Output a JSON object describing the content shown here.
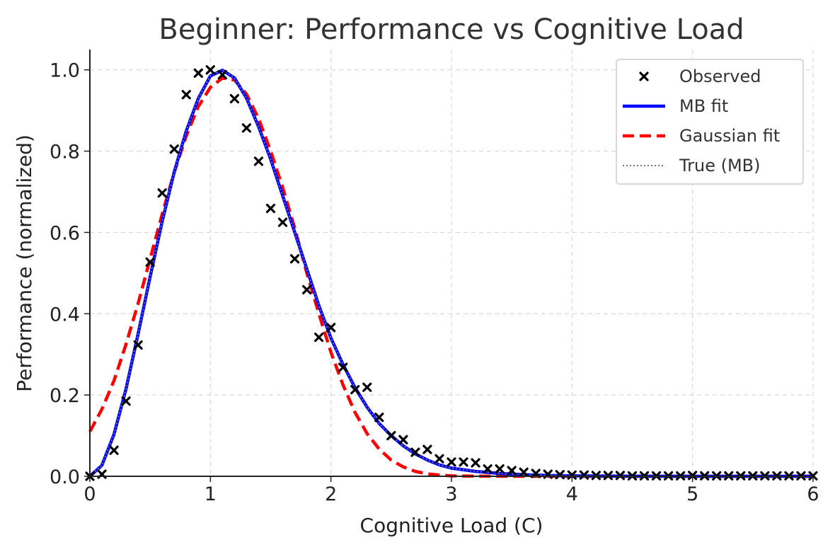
{
  "colors": {
    "observed": "#000000",
    "mb_fit": "#0000ff",
    "gaussian_fit": "#ff0000",
    "true_mb": "#777777",
    "grid": "#d8d8d8",
    "axis": "#222222",
    "title": "#333333"
  },
  "chart_data": {
    "type": "line",
    "title": "Beginner: Performance vs Cognitive Load",
    "xlabel": "Cognitive Load (C)",
    "ylabel": "Performance (normalized)",
    "xlim": [
      0,
      6
    ],
    "ylim": [
      0,
      1.05
    ],
    "xticks": [
      0,
      1,
      2,
      3,
      4,
      5,
      6
    ],
    "xtick_labels": [
      "0",
      "1",
      "2",
      "3",
      "4",
      "5",
      "6"
    ],
    "yticks": [
      0,
      0.2,
      0.4,
      0.6,
      0.8,
      1.0
    ],
    "ytick_labels": [
      "0.0",
      "0.2",
      "0.4",
      "0.6",
      "0.8",
      "1.0"
    ],
    "grid": true,
    "legend_position": "top-right",
    "legend": [
      "Observed",
      "MB fit",
      "Gaussian fit",
      "True (MB)"
    ],
    "series": [
      {
        "name": "Observed",
        "kind": "scatter",
        "marker": "x",
        "x": [
          0.0,
          0.1,
          0.2,
          0.3,
          0.4,
          0.5,
          0.6,
          0.7,
          0.8,
          0.9,
          1.0,
          1.1,
          1.2,
          1.3,
          1.4,
          1.5,
          1.6,
          1.7,
          1.8,
          1.9,
          2.0,
          2.1,
          2.2,
          2.3,
          2.4,
          2.5,
          2.6,
          2.7,
          2.8,
          2.9,
          3.0,
          3.1,
          3.2,
          3.3,
          3.4,
          3.5,
          3.6,
          3.7,
          3.8,
          3.9,
          4.0,
          4.1,
          4.2,
          4.3,
          4.4,
          4.5,
          4.6,
          4.7,
          4.8,
          4.9,
          5.0,
          5.1,
          5.2,
          5.3,
          5.4,
          5.5,
          5.6,
          5.7,
          5.8,
          5.9,
          6.0
        ],
        "y": [
          0.0,
          0.005,
          0.064,
          0.185,
          0.323,
          0.527,
          0.697,
          0.805,
          0.939,
          0.992,
          1.0,
          0.988,
          0.929,
          0.857,
          0.775,
          0.659,
          0.625,
          0.535,
          0.459,
          0.342,
          0.366,
          0.268,
          0.213,
          0.219,
          0.145,
          0.1,
          0.09,
          0.059,
          0.066,
          0.043,
          0.035,
          0.035,
          0.033,
          0.018,
          0.018,
          0.014,
          0.01,
          0.007,
          0.005,
          0.004,
          0.003,
          0.003,
          0.002,
          0.002,
          0.002,
          0.001,
          0.001,
          0.001,
          0.001,
          0.001,
          0.002,
          0.001,
          0.001,
          0.001,
          0.001,
          0.001,
          0.001,
          0.001,
          0.001,
          0.001,
          0.001
        ]
      },
      {
        "name": "MB fit",
        "kind": "line",
        "x": [
          0.0,
          0.1,
          0.2,
          0.3,
          0.4,
          0.5,
          0.6,
          0.7,
          0.8,
          0.9,
          1.0,
          1.1,
          1.2,
          1.3,
          1.4,
          1.5,
          1.6,
          1.7,
          1.8,
          1.9,
          2.0,
          2.1,
          2.2,
          2.3,
          2.4,
          2.5,
          2.6,
          2.7,
          2.8,
          2.9,
          3.0,
          3.2,
          3.4,
          3.6,
          3.8,
          4.0,
          4.5,
          5.0,
          5.5,
          6.0
        ],
        "y": [
          0.0,
          0.027,
          0.103,
          0.215,
          0.35,
          0.491,
          0.627,
          0.749,
          0.85,
          0.93,
          0.985,
          0.999,
          0.98,
          0.93,
          0.86,
          0.78,
          0.69,
          0.6,
          0.51,
          0.42,
          0.34,
          0.275,
          0.218,
          0.17,
          0.13,
          0.1,
          0.075,
          0.055,
          0.04,
          0.028,
          0.02,
          0.012,
          0.007,
          0.004,
          0.002,
          0.001,
          0.0003,
          0.0001,
          0.0,
          0.0
        ]
      },
      {
        "name": "Gaussian fit",
        "kind": "line",
        "x": [
          0.0,
          0.1,
          0.2,
          0.3,
          0.4,
          0.5,
          0.6,
          0.7,
          0.8,
          0.9,
          1.0,
          1.1,
          1.2,
          1.3,
          1.4,
          1.5,
          1.6,
          1.7,
          1.8,
          1.9,
          2.0,
          2.1,
          2.2,
          2.3,
          2.4,
          2.5,
          2.6,
          2.7,
          2.8,
          2.9,
          3.0,
          3.2,
          3.5,
          4.0,
          5.0,
          6.0
        ],
        "y": [
          0.11,
          0.165,
          0.235,
          0.325,
          0.425,
          0.535,
          0.645,
          0.748,
          0.838,
          0.91,
          0.957,
          0.98,
          0.975,
          0.94,
          0.88,
          0.8,
          0.71,
          0.61,
          0.5,
          0.4,
          0.305,
          0.225,
          0.157,
          0.105,
          0.067,
          0.04,
          0.023,
          0.012,
          0.006,
          0.003,
          0.001,
          0.0003,
          0.0,
          0.0,
          0.0,
          0.0
        ]
      },
      {
        "name": "True (MB)",
        "kind": "line",
        "x": [
          0.0,
          0.1,
          0.2,
          0.3,
          0.4,
          0.5,
          0.6,
          0.7,
          0.8,
          0.9,
          1.0,
          1.1,
          1.2,
          1.3,
          1.4,
          1.5,
          1.6,
          1.7,
          1.8,
          1.9,
          2.0,
          2.1,
          2.2,
          2.3,
          2.4,
          2.5,
          2.6,
          2.7,
          2.8,
          2.9,
          3.0,
          3.2,
          3.4,
          3.6,
          3.8,
          4.0,
          4.5,
          5.0,
          5.5,
          6.0
        ],
        "y": [
          0.0,
          0.027,
          0.103,
          0.215,
          0.35,
          0.491,
          0.627,
          0.749,
          0.85,
          0.93,
          0.985,
          0.999,
          0.98,
          0.93,
          0.86,
          0.78,
          0.69,
          0.6,
          0.51,
          0.42,
          0.34,
          0.275,
          0.218,
          0.17,
          0.13,
          0.1,
          0.075,
          0.055,
          0.04,
          0.028,
          0.02,
          0.012,
          0.007,
          0.004,
          0.002,
          0.001,
          0.0003,
          0.0001,
          0.0,
          0.0
        ]
      }
    ]
  }
}
